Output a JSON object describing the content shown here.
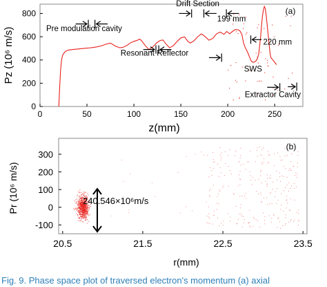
{
  "colors": {
    "trace": "#e8201c",
    "axis": "#000000",
    "caption": "#2e7fb8",
    "panel_border": "#888888"
  },
  "chart_data": [
    {
      "type": "line",
      "panel_label": "(a)",
      "xlabel": "z(mm)",
      "ylabel": "Pz (10⁶ m/s)",
      "xlim": [
        0,
        280
      ],
      "ylim": [
        0,
        880
      ],
      "x_ticks": [
        0,
        50,
        100,
        150,
        200,
        250
      ],
      "y_ticks": [
        0,
        200,
        400,
        600,
        800
      ],
      "grid": false,
      "series": [
        {
          "x": [
            20,
            21,
            22,
            23,
            24,
            26,
            28,
            30,
            35,
            40,
            45,
            50,
            55,
            60,
            65,
            70,
            75,
            80,
            85,
            88,
            92,
            96,
            100,
            104,
            106,
            108,
            112,
            116,
            120,
            124,
            128,
            131,
            134,
            138,
            142,
            146,
            150,
            154,
            157,
            160,
            164,
            168,
            172,
            176,
            180,
            184,
            188,
            192,
            196,
            199,
            202,
            205,
            208,
            211,
            213,
            215,
            217,
            219,
            221,
            223,
            225,
            227,
            229,
            231,
            233,
            235,
            236,
            237,
            238,
            239,
            240,
            241,
            242,
            243,
            244,
            245,
            246,
            248,
            250,
            252
          ],
          "y": [
            0,
            180,
            320,
            400,
            440,
            465,
            478,
            485,
            490,
            494,
            498,
            502,
            506,
            512,
            520,
            535,
            545,
            520,
            505,
            508,
            522,
            545,
            560,
            570,
            580,
            568,
            525,
            490,
            510,
            545,
            568,
            572,
            540,
            505,
            522,
            560,
            590,
            598,
            565,
            545,
            565,
            600,
            625,
            600,
            570,
            585,
            625,
            640,
            620,
            645,
            625,
            645,
            662,
            660,
            650,
            620,
            540,
            500,
            470,
            430,
            390,
            380,
            385,
            400,
            450,
            600,
            700,
            780,
            830,
            860,
            840,
            780,
            700,
            620,
            540,
            460,
            420,
            400,
            380,
            360
          ]
        }
      ],
      "annotations": [
        {
          "text": "Pre modulation cavity",
          "x": 47,
          "y": 648
        },
        {
          "text": "Resonant Reflector",
          "x": 122,
          "y": 438
        },
        {
          "text": "Drift Section",
          "x": 168,
          "y": 862
        },
        {
          "text": "199 mm",
          "x": 204,
          "y": 730
        },
        {
          "text": "220 mm",
          "x": 253,
          "y": 532
        },
        {
          "text": "SWS",
          "x": 227,
          "y": 300
        },
        {
          "text": "Extractor Cavity",
          "x": 248,
          "y": 80
        }
      ]
    },
    {
      "type": "scatter",
      "panel_label": "(b)",
      "xlabel": "r(mm)",
      "ylabel": "Pr (10⁶ m/s)",
      "xlim": [
        20.45,
        23.55
      ],
      "ylim": [
        -150,
        390
      ],
      "x_ticks": [
        "20.5",
        "21.5",
        "22.5",
        "23.5"
      ],
      "y_ticks": [
        "-100",
        "0",
        "100",
        "200",
        "300"
      ],
      "grid": false,
      "annotations": [
        {
          "text": "240.546×10⁶m/s",
          "x": 21.12,
          "y": 10
        }
      ],
      "series": [
        {
          "cluster_center": [
            20.75,
            0
          ],
          "cluster_spread": [
            0.06,
            58
          ],
          "n": 700
        },
        {
          "region_x": [
            22.3,
            23.45
          ],
          "region_y": [
            -120,
            340
          ],
          "n": 260
        }
      ]
    }
  ],
  "caption": "Fig. 9.   Phase space plot of traversed electron's momentum (a) axial"
}
